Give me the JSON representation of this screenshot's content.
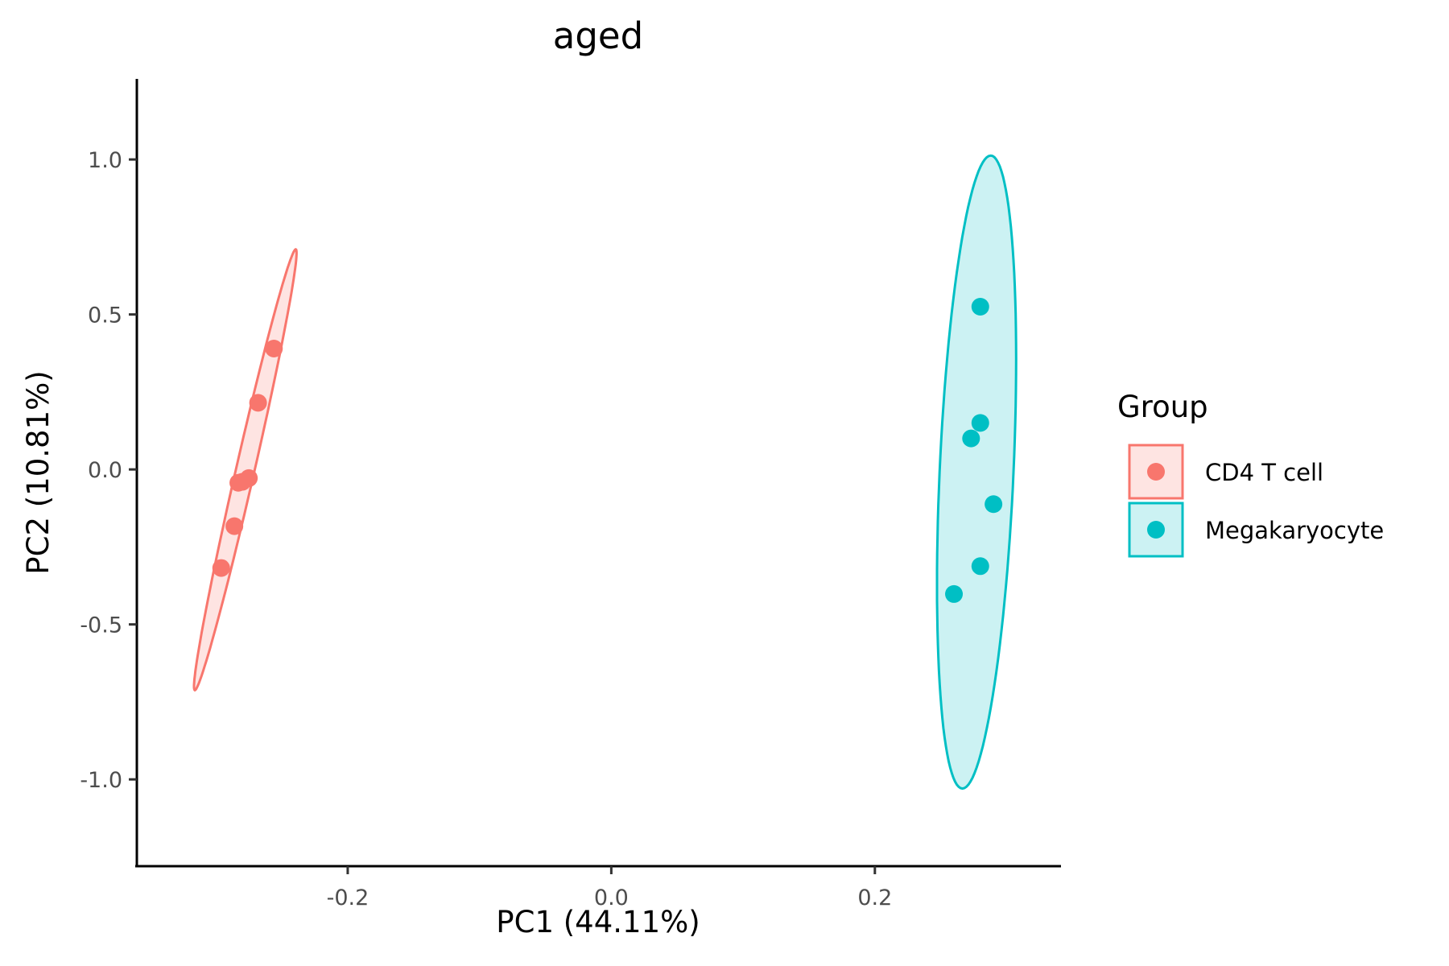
{
  "chart_data": {
    "type": "scatter",
    "title": "aged",
    "xlabel": "PC1 (44.11%)",
    "ylabel": "PC2 (10.81%)",
    "xlim": [
      -0.36,
      0.34
    ],
    "ylim": [
      -1.28,
      1.26
    ],
    "x_ticks": [
      -0.2,
      0.0,
      0.2
    ],
    "x_tick_labels": [
      "-0.2",
      "0.0",
      "0.2"
    ],
    "y_ticks": [
      -1.0,
      -0.5,
      0.0,
      0.5,
      1.0
    ],
    "y_tick_labels": [
      "-1.0",
      "-0.5",
      "0.0",
      "0.5",
      "1.0"
    ],
    "grid": false,
    "legend_title": "Group",
    "legend_position": "right",
    "ellipses": true,
    "series": [
      {
        "name": "CD4 T cell",
        "color": "#F8766D",
        "fill": "#FDE3E1",
        "points": [
          {
            "x": -0.256,
            "y": 0.39
          },
          {
            "x": -0.268,
            "y": 0.215
          },
          {
            "x": -0.275,
            "y": -0.028
          },
          {
            "x": -0.28,
            "y": -0.04
          },
          {
            "x": -0.283,
            "y": -0.043
          },
          {
            "x": -0.286,
            "y": -0.183
          },
          {
            "x": -0.296,
            "y": -0.318
          }
        ]
      },
      {
        "name": "Megakaryocyte",
        "color": "#00BFC4",
        "fill": "#CCF2F3",
        "points": [
          {
            "x": 0.28,
            "y": 0.525
          },
          {
            "x": 0.28,
            "y": 0.15
          },
          {
            "x": 0.273,
            "y": 0.1
          },
          {
            "x": 0.29,
            "y": -0.112
          },
          {
            "x": 0.28,
            "y": -0.312
          },
          {
            "x": 0.26,
            "y": -0.402
          }
        ]
      }
    ]
  }
}
